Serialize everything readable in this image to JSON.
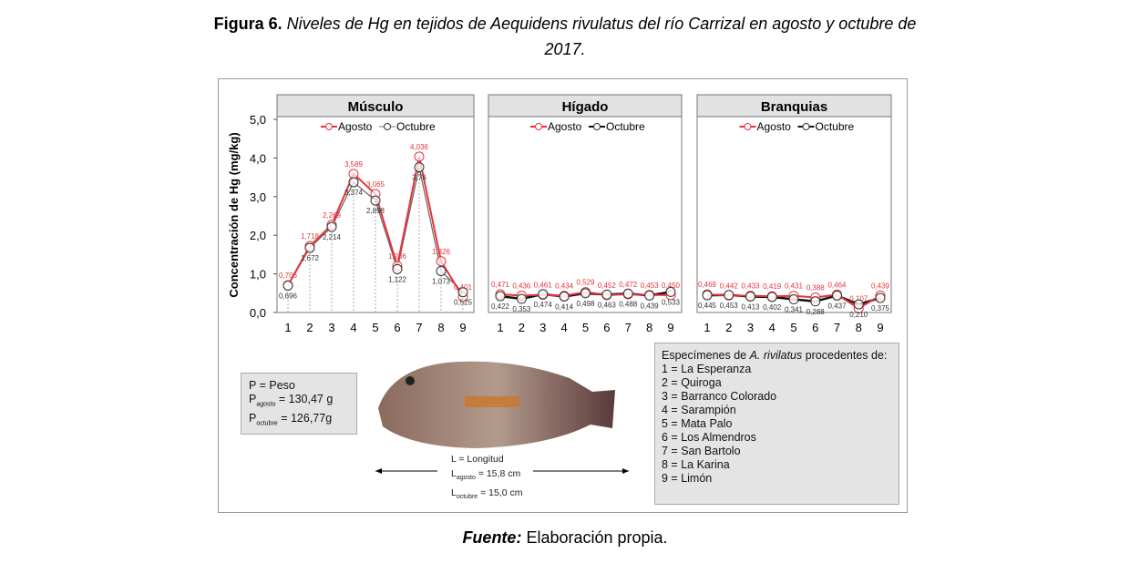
{
  "caption": {
    "label": "Figura 6.",
    "text": "Niveles de Hg en tejidos de Aequidens rivulatus del río Carrizal en agosto y octubre de",
    "text2": "2017."
  },
  "source": {
    "label": "Fuente:",
    "text": "Elaboración propia."
  },
  "colors": {
    "agosto": "#e8333a",
    "octubre": "#111111"
  },
  "chart_data": [
    {
      "type": "line",
      "title": "Músculo",
      "ylabel": "Concentración de Hg (mg/kg)",
      "ylim": [
        0,
        5
      ],
      "yticks": [
        "0,0",
        "1,0",
        "2,0",
        "3,0",
        "4,0",
        "5,0"
      ],
      "categories": [
        "1",
        "2",
        "3",
        "4",
        "5",
        "6",
        "7",
        "8",
        "9"
      ],
      "series": [
        {
          "name": "Agosto",
          "values": [
            0.706,
            1.718,
            2.269,
            3.589,
            3.065,
            1.206,
            4.036,
            1.326,
            0.401
          ],
          "labels": [
            "0,706",
            "1,718",
            "2,269",
            "3,589",
            "3,065",
            "1,206",
            "4,036",
            "1,326",
            "0,401"
          ]
        },
        {
          "name": "Octubre",
          "values": [
            0.696,
            1.672,
            2.214,
            3.374,
            2.898,
            1.122,
            3.76,
            1.073,
            0.525
          ],
          "labels": [
            "0,696",
            "1,672",
            "2,214",
            "3,374",
            "2,898",
            "1,122",
            "3,76",
            "1,073",
            "0,525"
          ]
        }
      ]
    },
    {
      "type": "line",
      "title": "Hígado",
      "ylim": [
        0,
        5
      ],
      "categories": [
        "1",
        "2",
        "3",
        "4",
        "5",
        "6",
        "7",
        "8",
        "9"
      ],
      "series": [
        {
          "name": "Agosto",
          "values": [
            0.471,
            0.436,
            0.461,
            0.434,
            0.529,
            0.452,
            0.472,
            0.453,
            0.45
          ],
          "labels": [
            "0,471",
            "0,436",
            "0,461",
            "0,434",
            "0,529",
            "0,452",
            "0,472",
            "0,453",
            "0,450"
          ]
        },
        {
          "name": "Octubre",
          "values": [
            0.422,
            0.353,
            0.474,
            0.414,
            0.498,
            0.463,
            0.488,
            0.439,
            0.533
          ],
          "labels": [
            "0,422",
            "0,353",
            "0,474",
            "0,414",
            "0,498",
            "0,463",
            "0,488",
            "0,439",
            "0,533"
          ]
        }
      ]
    },
    {
      "type": "line",
      "title": "Branquias",
      "ylim": [
        0,
        5
      ],
      "categories": [
        "1",
        "2",
        "3",
        "4",
        "5",
        "6",
        "7",
        "8",
        "9"
      ],
      "series": [
        {
          "name": "Agosto",
          "values": [
            0.469,
            0.442,
            0.433,
            0.419,
            0.431,
            0.388,
            0.464,
            0.107,
            0.439
          ],
          "labels": [
            "0,469",
            "0,442",
            "0,433",
            "0,419",
            "0,431",
            "0,388",
            "0,464",
            "0,107",
            "0,439"
          ]
        },
        {
          "name": "Octubre",
          "values": [
            0.445,
            0.453,
            0.413,
            0.402,
            0.341,
            0.288,
            0.437,
            0.21,
            0.375
          ],
          "labels": [
            "0,445",
            "0,453",
            "0,413",
            "0,402",
            "0,341",
            "0,288",
            "0,437",
            "0,210",
            "0,375"
          ]
        }
      ]
    }
  ],
  "peso": {
    "title": "P = Peso",
    "agosto_label": "agosto",
    "agosto": "= 130,47 g",
    "octubre_label": "octubre",
    "octubre": "= 126,77g"
  },
  "longitud": {
    "title": "L = Longitud",
    "agosto_label": "agosto",
    "agosto": "= 15,8 cm",
    "octubre_label": "octubre",
    "octubre": "= 15,0 cm"
  },
  "specimens": {
    "title_a": "Especímenes de ",
    "title_i": "A. rivilatus",
    "title_b": " procedentes de:",
    "items": [
      "1 = La Esperanza",
      "2 = Quiroga",
      "3 = Barranco Colorado",
      "4 = Sarampión",
      "5 = Mata Palo",
      "6 = Los Almendros",
      "7 = San Bartolo",
      "8 = La Karina",
      "9 = Limón"
    ]
  }
}
